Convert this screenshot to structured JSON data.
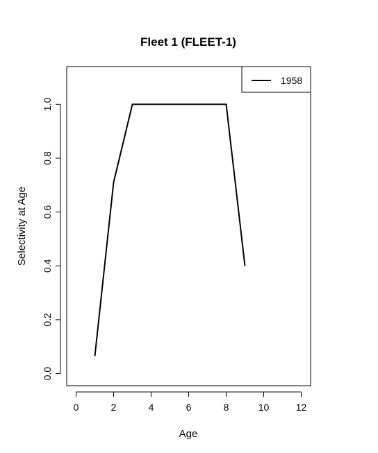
{
  "chart_data": {
    "type": "line",
    "title": "Fleet 1 (FLEET-1)",
    "xlabel": "Age",
    "ylabel": "Selectivity at Age",
    "xlim": [
      -0.5,
      12.5
    ],
    "ylim": [
      -0.045,
      1.14
    ],
    "xticks": [
      0,
      2,
      4,
      6,
      8,
      10,
      12
    ],
    "yticks": [
      0.0,
      0.2,
      0.4,
      0.6,
      0.8,
      1.0
    ],
    "ytick_labels": [
      "0.0",
      "0.2",
      "0.4",
      "0.6",
      "0.8",
      "1.0"
    ],
    "grid": false,
    "legend_position": "top-right",
    "series": [
      {
        "name": "1958",
        "color": "#000000",
        "x": [
          1,
          2,
          3,
          4,
          5,
          6,
          7,
          8,
          9
        ],
        "y": [
          0.065,
          0.71,
          1.0,
          1.0,
          1.0,
          1.0,
          1.0,
          1.0,
          0.4
        ]
      }
    ]
  }
}
